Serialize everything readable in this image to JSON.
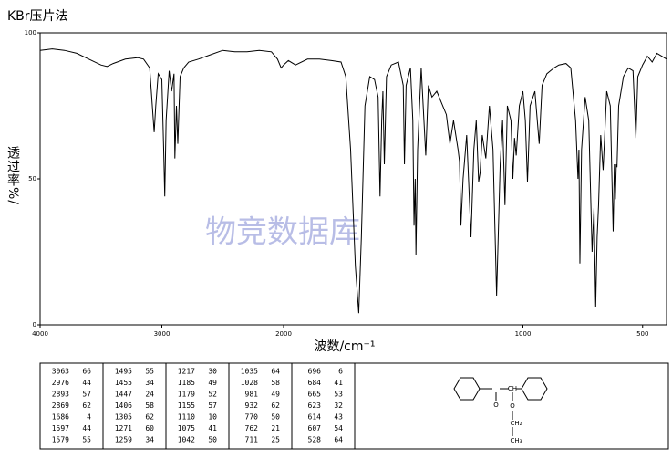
{
  "chart_data": {
    "type": "line",
    "title": "KBr压片法",
    "ylabel": "透过率%/",
    "xlabel": "波数/cm⁻¹",
    "watermark": "物竞数据库",
    "color": "#000000",
    "xlim": [
      4000,
      400
    ],
    "xbreak": 2000,
    "xticks": [
      4000,
      3000,
      2000,
      1000,
      500
    ],
    "ylim": [
      0,
      100
    ],
    "yticks": [
      0,
      50,
      100
    ],
    "x": [
      4000,
      3900,
      3800,
      3700,
      3600,
      3500,
      3450,
      3400,
      3300,
      3200,
      3150,
      3100,
      3070,
      3063,
      3050,
      3030,
      3000,
      2985,
      2976,
      2965,
      2940,
      2920,
      2900,
      2893,
      2880,
      2869,
      2850,
      2820,
      2780,
      2700,
      2600,
      2500,
      2400,
      2300,
      2200,
      2100,
      2050,
      2020,
      2000,
      1980,
      1950,
      1900,
      1850,
      1800,
      1760,
      1740,
      1720,
      1700,
      1686,
      1675,
      1660,
      1640,
      1620,
      1605,
      1597,
      1590,
      1585,
      1579,
      1570,
      1550,
      1520,
      1500,
      1495,
      1488,
      1470,
      1460,
      1455,
      1450,
      1447,
      1440,
      1425,
      1406,
      1395,
      1380,
      1360,
      1340,
      1320,
      1305,
      1290,
      1271,
      1265,
      1259,
      1250,
      1235,
      1217,
      1205,
      1195,
      1185,
      1179,
      1170,
      1155,
      1140,
      1125,
      1110,
      1095,
      1085,
      1075,
      1065,
      1050,
      1042,
      1035,
      1028,
      1015,
      1000,
      990,
      981,
      970,
      950,
      932,
      920,
      900,
      870,
      850,
      820,
      800,
      780,
      770,
      766,
      762,
      755,
      740,
      725,
      711,
      703,
      696,
      690,
      684,
      675,
      665,
      650,
      635,
      623,
      618,
      614,
      610,
      607,
      600,
      580,
      560,
      540,
      528,
      520,
      500,
      480,
      460,
      440,
      420,
      400
    ],
    "values": [
      94,
      94.5,
      94,
      93,
      91,
      89,
      88.5,
      89.5,
      91,
      91.5,
      91,
      88,
      70,
      66,
      75,
      86,
      84,
      60,
      44,
      70,
      87,
      80,
      86,
      57,
      75,
      62,
      85,
      88,
      90,
      91,
      92.5,
      94,
      93.5,
      93.5,
      94,
      93.5,
      91,
      88,
      89,
      90.5,
      89,
      91,
      91,
      90.5,
      90,
      85,
      60,
      20,
      4,
      30,
      75,
      85,
      84,
      78,
      44,
      70,
      80,
      55,
      85,
      89,
      90,
      82,
      55,
      82,
      88,
      70,
      34,
      50,
      24,
      60,
      88,
      58,
      82,
      78,
      80,
      76,
      72,
      62,
      70,
      60,
      56,
      34,
      50,
      65,
      30,
      60,
      70,
      49,
      52,
      65,
      57,
      75,
      60,
      10,
      55,
      70,
      41,
      75,
      70,
      50,
      64,
      58,
      75,
      80,
      70,
      49,
      75,
      80,
      62,
      82,
      86,
      88,
      89,
      89.5,
      88,
      70,
      50,
      60,
      21,
      60,
      78,
      70,
      25,
      40,
      6,
      30,
      41,
      65,
      53,
      80,
      75,
      32,
      55,
      43,
      55,
      54,
      75,
      85,
      88,
      87,
      64,
      85,
      89,
      92,
      90,
      93,
      92,
      91
    ]
  },
  "peak_table": {
    "columns": [
      [
        [
          3063,
          66
        ],
        [
          2976,
          44
        ],
        [
          2893,
          57
        ],
        [
          2869,
          62
        ],
        [
          1686,
          4
        ],
        [
          1597,
          44
        ],
        [
          1579,
          55
        ]
      ],
      [
        [
          1495,
          55
        ],
        [
          1455,
          34
        ],
        [
          1447,
          24
        ],
        [
          1406,
          58
        ],
        [
          1305,
          62
        ],
        [
          1271,
          60
        ],
        [
          1259,
          34
        ]
      ],
      [
        [
          1217,
          30
        ],
        [
          1185,
          49
        ],
        [
          1179,
          52
        ],
        [
          1155,
          57
        ],
        [
          1110,
          10
        ],
        [
          1075,
          41
        ],
        [
          1042,
          50
        ]
      ],
      [
        [
          1035,
          64
        ],
        [
          1028,
          58
        ],
        [
          981,
          49
        ],
        [
          932,
          62
        ],
        [
          770,
          50
        ],
        [
          762,
          21
        ],
        [
          711,
          25
        ]
      ],
      [
        [
          696,
          6
        ],
        [
          684,
          41
        ],
        [
          665,
          53
        ],
        [
          623,
          32
        ],
        [
          614,
          43
        ],
        [
          607,
          54
        ],
        [
          528,
          64
        ]
      ]
    ]
  },
  "structure": {
    "labels": [
      "O",
      "CH",
      "O",
      "CH₂",
      "CH₃"
    ]
  }
}
